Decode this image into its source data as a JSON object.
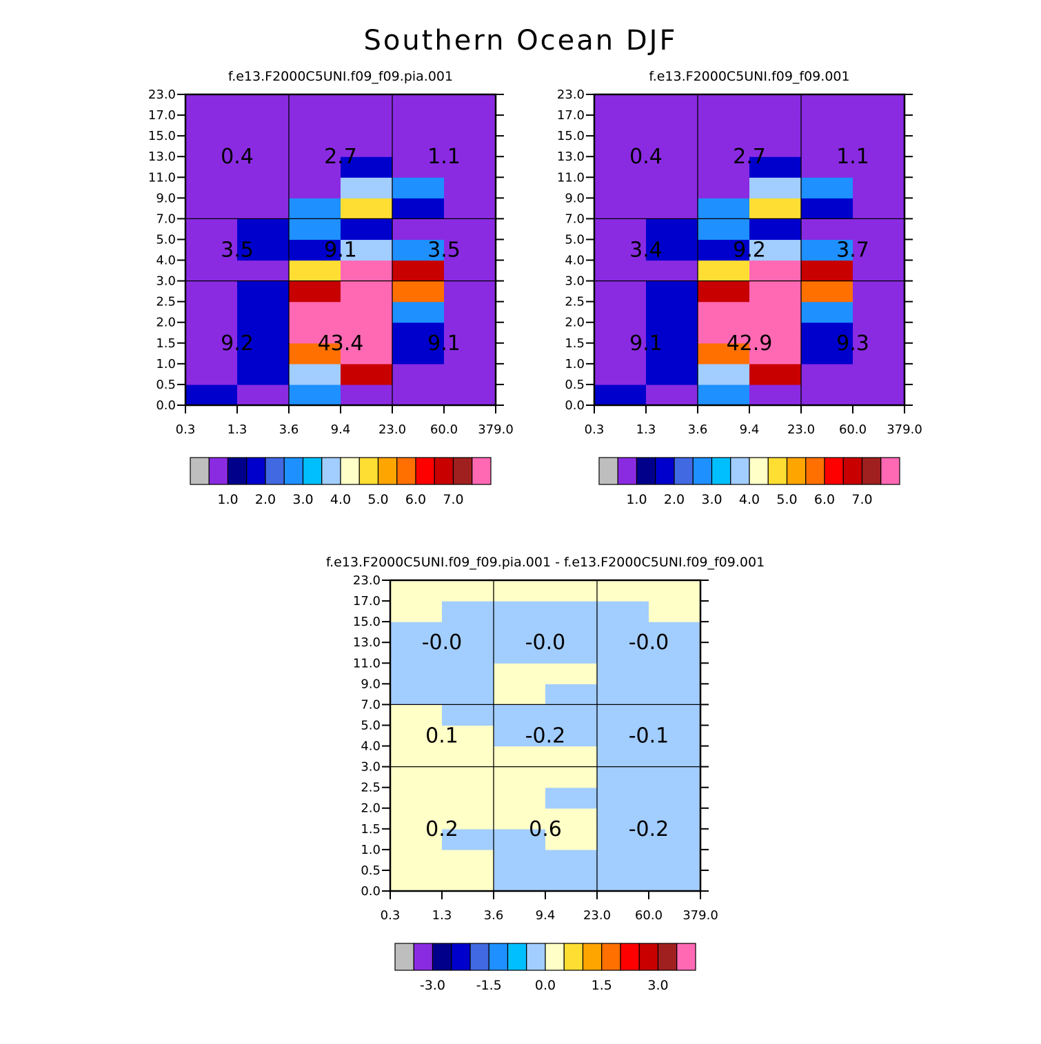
{
  "title": "Southern Ocean DJF",
  "x_tick_labels": [
    "0.3",
    "1.3",
    "3.6",
    "9.4",
    "23.0",
    "60.0",
    "379.0"
  ],
  "y_tick_labels": [
    "0.0",
    "0.5",
    "1.0",
    "1.5",
    "2.0",
    "2.5",
    "3.0",
    "4.0",
    "5.0",
    "7.0",
    "9.0",
    "11.0",
    "13.0",
    "15.0",
    "17.0",
    "23.0"
  ],
  "colors": {
    "palette_abs": [
      "#bebebe",
      "#8a2be2",
      "#00008b",
      "#0000cd",
      "#4169e1",
      "#1e90ff",
      "#00bfff",
      "#a2cdff",
      "#ffffc8",
      "#ffde33",
      "#ffa500",
      "#ff7000",
      "#ff0000",
      "#c80000",
      "#a02020",
      "#ff69b4"
    ],
    "palette_diff": [
      "#bebebe",
      "#8a2be2",
      "#00008b",
      "#0000cd",
      "#4169e1",
      "#1e90ff",
      "#00bfff",
      "#a2cdff",
      "#ffffc8",
      "#ffde33",
      "#ffa500",
      "#ff7000",
      "#ff0000",
      "#c80000",
      "#a02020",
      "#ff69b4"
    ]
  },
  "chart_data": [
    {
      "type": "heatmap",
      "title": "f.e13.F2000C5UNI.f09_f09.pia.001",
      "x_ticks": [
        "0.3",
        "1.3",
        "3.6",
        "9.4",
        "23.0",
        "60.0",
        "379.0"
      ],
      "y_ticks": [
        "0.0",
        "0.5",
        "1.0",
        "1.5",
        "2.0",
        "2.5",
        "3.0",
        "4.0",
        "5.0",
        "7.0",
        "9.0",
        "11.0",
        "13.0",
        "15.0",
        "17.0",
        "23.0"
      ],
      "cells": [
        [
          1.5,
          0.5,
          0.5,
          0.5,
          0.5,
          0.5,
          0.5,
          0.5,
          0.5,
          0.5,
          0.5,
          0.5,
          0.5,
          0.5,
          0.5
        ],
        [
          0.5,
          1.5,
          1.5,
          1.5,
          1.5,
          1.5,
          0.5,
          1.5,
          1.5,
          0.5,
          0.5,
          0.5,
          0.5,
          0.5,
          0.5
        ],
        [
          2.5,
          3.5,
          5.5,
          7.5,
          7.5,
          6.5,
          4.5,
          1.5,
          2.5,
          2.5,
          0.5,
          0.5,
          0.5,
          0.5,
          0.5
        ],
        [
          0.5,
          6.5,
          7.5,
          7.5,
          7.5,
          15.5,
          11.5,
          3.5,
          1.5,
          4.5,
          3.5,
          1.5,
          0.5,
          0.5,
          0.5
        ],
        [
          0.5,
          0.5,
          1.5,
          1.5,
          2.5,
          5.5,
          6.5,
          2.5,
          0.5,
          1.5,
          2.5,
          0.5,
          0.5,
          0.5,
          0.5
        ],
        [
          0.5,
          0.5,
          0.5,
          0.5,
          0.5,
          0.5,
          0.5,
          0.5,
          0.5,
          0.5,
          0.5,
          0.5,
          0.5,
          0.5,
          0.5
        ]
      ],
      "box_values": [
        [
          "9.2",
          "43.4",
          "9.1"
        ],
        [
          "3.5",
          "9.1",
          "3.5"
        ],
        [
          "0.4",
          "2.7",
          "1.1"
        ]
      ],
      "colorbar_labels": [
        "1.0",
        "2.0",
        "3.0",
        "4.0",
        "5.0",
        "6.0",
        "7.0"
      ]
    },
    {
      "type": "heatmap",
      "title": "f.e13.F2000C5UNI.f09_f09.001",
      "x_ticks": [
        "0.3",
        "1.3",
        "3.6",
        "9.4",
        "23.0",
        "60.0",
        "379.0"
      ],
      "y_ticks": [
        "0.0",
        "0.5",
        "1.0",
        "1.5",
        "2.0",
        "2.5",
        "3.0",
        "4.0",
        "5.0",
        "7.0",
        "9.0",
        "11.0",
        "13.0",
        "15.0",
        "17.0",
        "23.0"
      ],
      "cells": [
        [
          1.5,
          0.5,
          0.5,
          0.5,
          0.5,
          0.5,
          0.5,
          0.5,
          0.5,
          0.5,
          0.5,
          0.5,
          0.5,
          0.5,
          0.5
        ],
        [
          0.5,
          1.5,
          1.5,
          1.5,
          1.5,
          1.5,
          0.5,
          1.5,
          1.5,
          0.5,
          0.5,
          0.5,
          0.5,
          0.5,
          0.5
        ],
        [
          2.5,
          3.5,
          5.5,
          7.5,
          7.5,
          6.5,
          4.5,
          1.5,
          2.5,
          2.5,
          0.5,
          0.5,
          0.5,
          0.5,
          0.5
        ],
        [
          0.5,
          6.5,
          7.5,
          8.5,
          7.5,
          15.5,
          11.5,
          3.5,
          1.5,
          4.5,
          3.5,
          1.5,
          0.5,
          0.5,
          0.5
        ],
        [
          0.5,
          0.5,
          1.5,
          1.5,
          2.5,
          5.5,
          6.5,
          2.5,
          0.5,
          1.5,
          2.5,
          0.5,
          0.5,
          0.5,
          0.5
        ],
        [
          0.5,
          0.5,
          0.5,
          0.5,
          0.5,
          0.5,
          0.5,
          0.5,
          0.5,
          0.5,
          0.5,
          0.5,
          0.5,
          0.5,
          0.5
        ]
      ],
      "box_values": [
        [
          "9.1",
          "42.9",
          "9.3"
        ],
        [
          "3.4",
          "9.2",
          "3.7"
        ],
        [
          "0.4",
          "2.7",
          "1.1"
        ]
      ],
      "colorbar_labels": [
        "1.0",
        "2.0",
        "3.0",
        "4.0",
        "5.0",
        "6.0",
        "7.0"
      ]
    },
    {
      "type": "heatmap",
      "title": "f.e13.F2000C5UNI.f09_f09.pia.001 - f.e13.F2000C5UNI.f09_f09.001",
      "x_ticks": [
        "0.3",
        "1.3",
        "3.6",
        "9.4",
        "23.0",
        "60.0",
        "379.0"
      ],
      "y_ticks": [
        "0.0",
        "0.5",
        "1.0",
        "1.5",
        "2.0",
        "2.5",
        "3.0",
        "4.0",
        "5.0",
        "7.0",
        "9.0",
        "11.0",
        "13.0",
        "15.0",
        "17.0",
        "23.0"
      ],
      "cells": [
        [
          0.1,
          0.1,
          0.1,
          0.1,
          0.1,
          0.1,
          0.1,
          0.1,
          0.1,
          -0.1,
          -0.1,
          -0.1,
          -0.1,
          0.1,
          0.1
        ],
        [
          0.1,
          0.1,
          -0.1,
          0.1,
          0.1,
          0.1,
          0.1,
          0.1,
          -0.1,
          -0.1,
          -0.1,
          -0.1,
          -0.1,
          -0.1,
          0.1
        ],
        [
          -0.1,
          -0.1,
          -0.1,
          0.1,
          0.1,
          0.1,
          0.1,
          -0.1,
          -0.1,
          0.1,
          0.1,
          -0.1,
          -0.1,
          -0.1,
          0.1
        ],
        [
          -0.1,
          -0.1,
          0.1,
          0.1,
          -0.1,
          0.1,
          0.1,
          -0.1,
          -0.1,
          -0.1,
          0.1,
          -0.1,
          -0.1,
          -0.1,
          0.1
        ],
        [
          -0.1,
          -0.1,
          -0.1,
          -0.1,
          -0.1,
          -0.1,
          -0.1,
          -0.1,
          -0.1,
          -0.1,
          -0.1,
          -0.1,
          -0.1,
          -0.1,
          0.1
        ],
        [
          -0.1,
          -0.1,
          -0.1,
          -0.1,
          -0.1,
          -0.1,
          -0.1,
          -0.1,
          -0.1,
          -0.1,
          -0.1,
          -0.1,
          -0.1,
          0.1,
          0.1
        ]
      ],
      "box_values": [
        [
          "0.2",
          "0.6",
          "-0.2"
        ],
        [
          "0.1",
          "-0.2",
          "-0.1"
        ],
        [
          "-0.0",
          "-0.0",
          "-0.0"
        ]
      ],
      "colorbar_labels": [
        "-3.0",
        "-1.5",
        "0.0",
        "1.5",
        "3.0"
      ]
    }
  ]
}
